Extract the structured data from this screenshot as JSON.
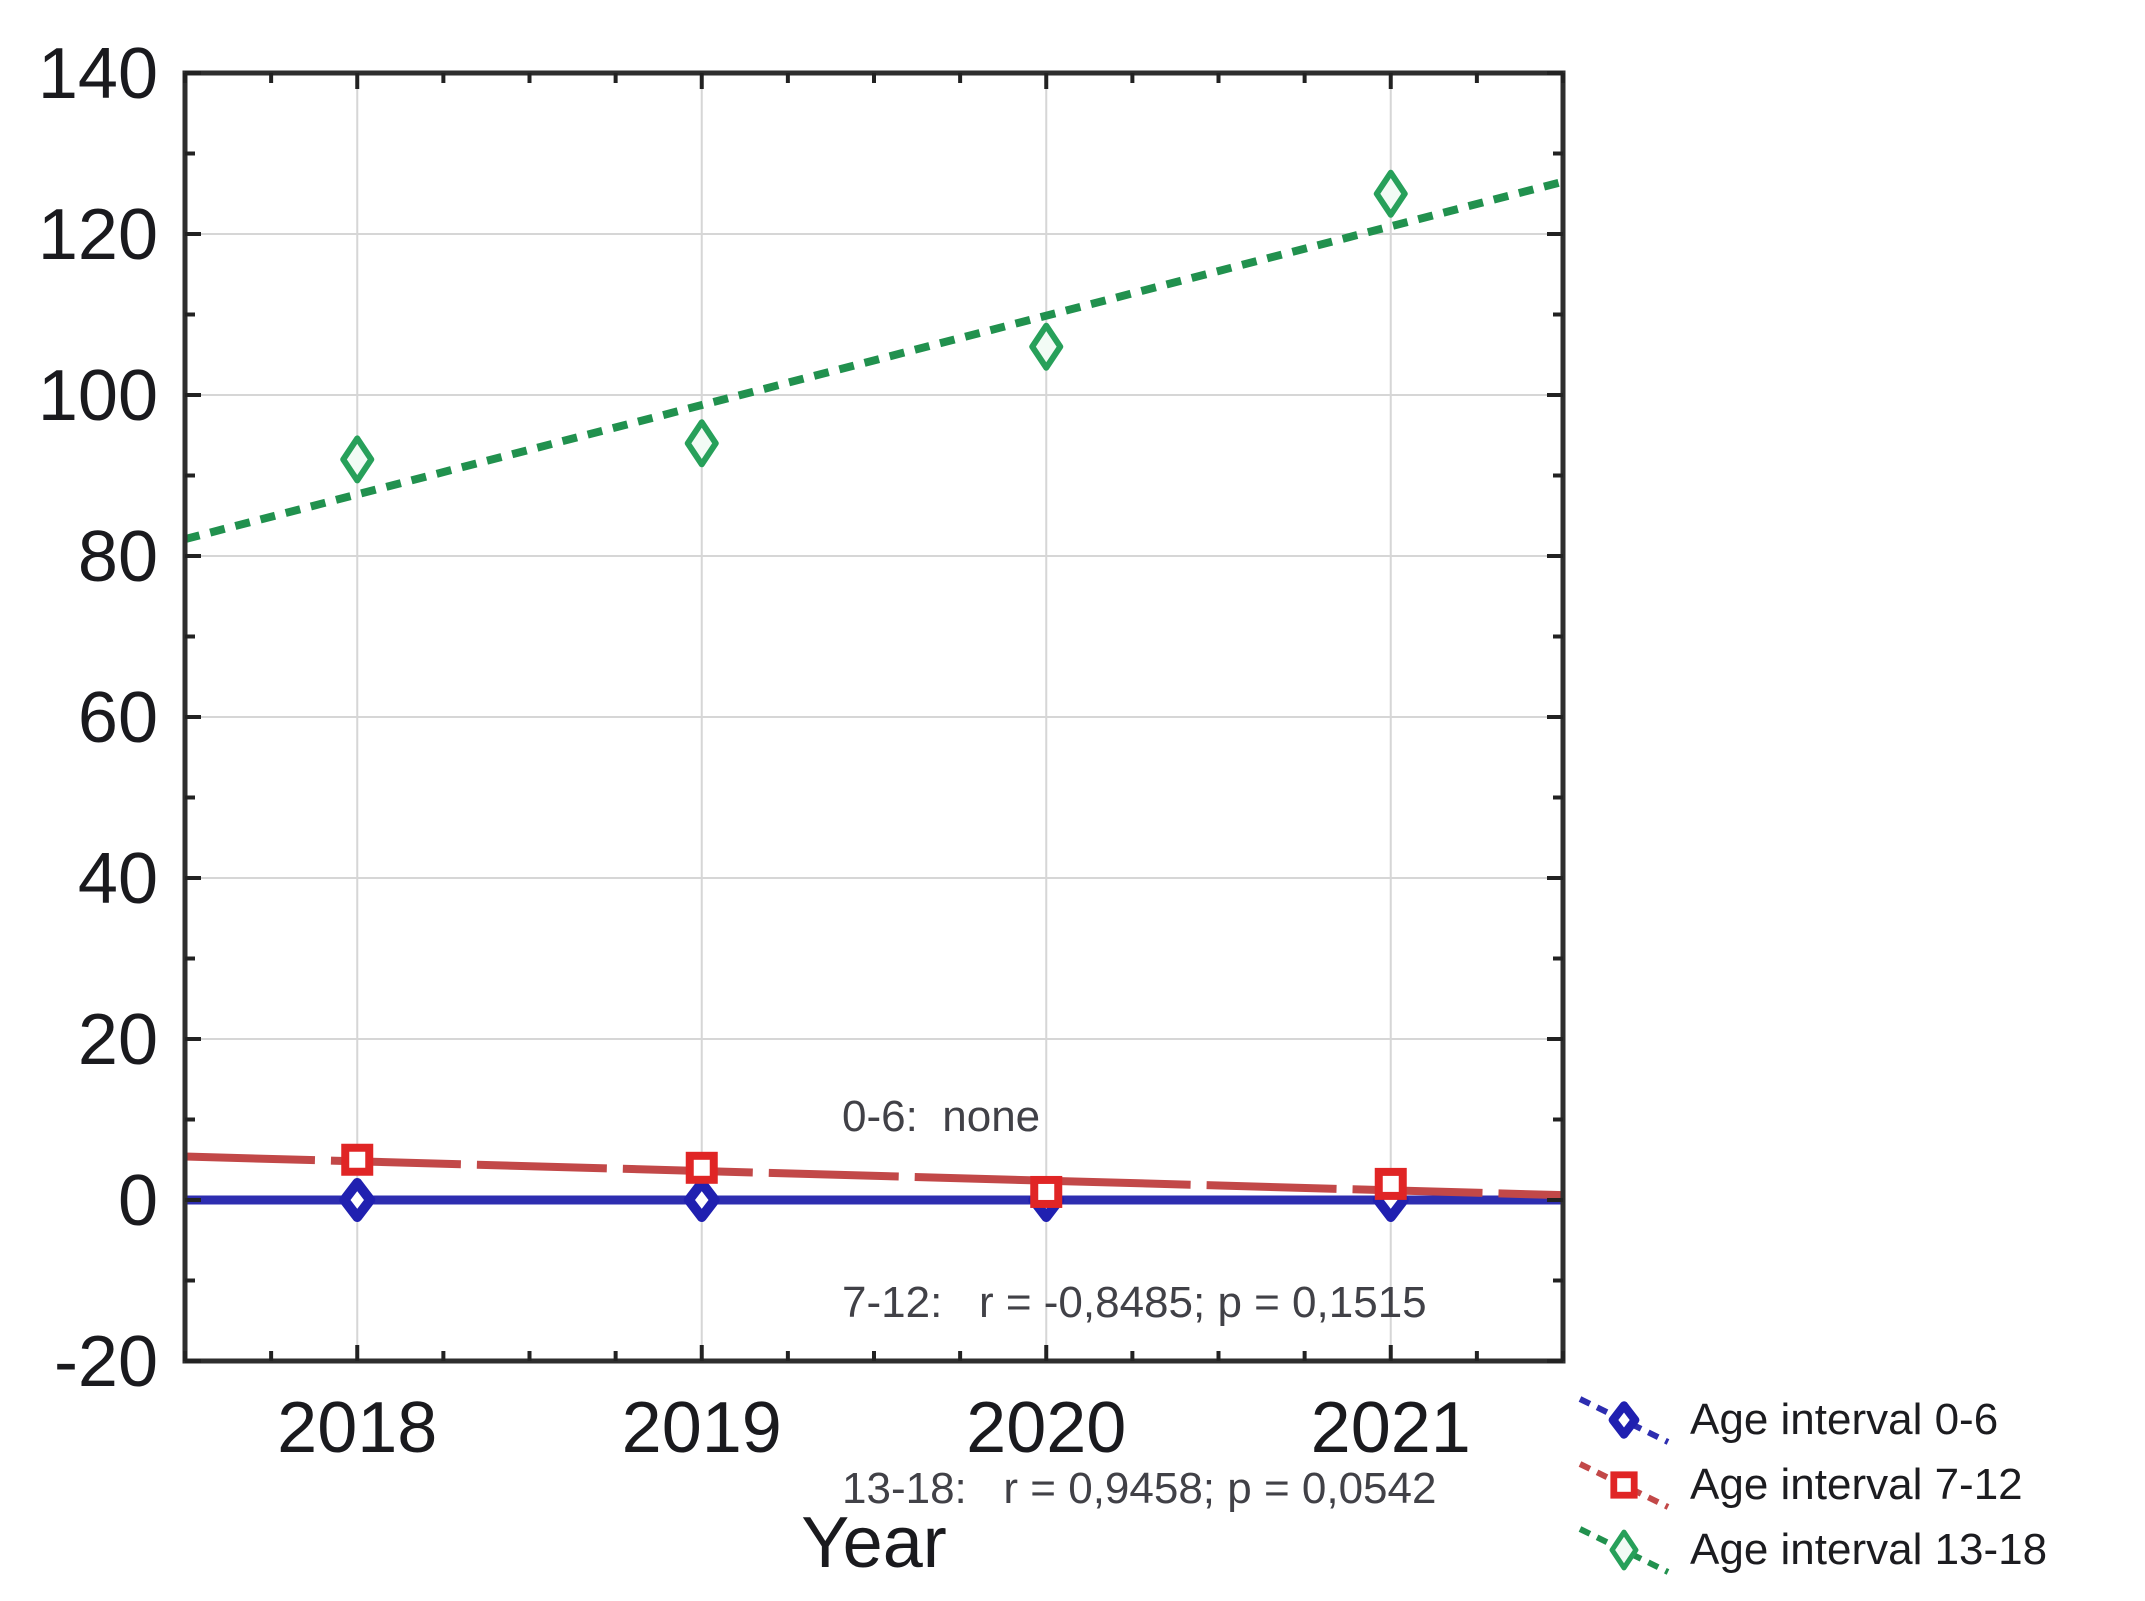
{
  "chart_data": {
    "type": "scatter",
    "title": "",
    "xlabel": "Year",
    "ylabel": "",
    "x": [
      2018,
      2019,
      2020,
      2021
    ],
    "xlim": [
      2017.5,
      2021.5
    ],
    "x_minor_step": 0.25,
    "ylim": [
      -20,
      140
    ],
    "y_major_step": 20,
    "y_minor_step": 10,
    "grid": true,
    "legend_position": "outside-bottom-right",
    "frame_color": "#2e2e2e",
    "grid_color": "#d6d6d6",
    "axis_text_color": "#1a1a1e",
    "series": [
      {
        "name": "Age interval 0-6",
        "age_interval": "0-6",
        "marker": "diamond",
        "marker_color": "#2020b0",
        "marker_rx": 13,
        "marker_ry": 17,
        "marker_stroke": 10,
        "marker_fill": "#ffffff",
        "line_color": "#2d2db0",
        "line_style": "solid",
        "line_width": 9,
        "values": [
          0,
          0,
          0,
          0
        ],
        "trendline": {
          "y_at_xlim_start": 0,
          "y_at_xlim_end": 0
        },
        "correlation": "none"
      },
      {
        "name": "Age interval 7-12",
        "age_interval": "7-12",
        "marker": "square",
        "marker_color": "#e02525",
        "marker_rx": 12,
        "marker_ry": 12,
        "marker_stroke": 8,
        "marker_fill": "#ffffff",
        "line_color": "#c24848",
        "line_style": "long-dash",
        "line_width": 8,
        "values": [
          5,
          4,
          1,
          2
        ],
        "trendline": {
          "y_at_xlim_start": 5.4,
          "y_at_xlim_end": 0.6
        },
        "correlation": "r = -0,8485; p = 0,1515"
      },
      {
        "name": "Age interval 13-18",
        "age_interval": "13-18",
        "marker": "diamond",
        "marker_color": "#27a05a",
        "marker_rx": 14,
        "marker_ry": 21,
        "marker_stroke": 6,
        "marker_fill": "#f2fbf5",
        "line_color": "#21914e",
        "line_style": "dash",
        "line_width": 8,
        "values": [
          92,
          94,
          106,
          125
        ],
        "trendline": {
          "y_at_xlim_start": 82.1,
          "y_at_xlim_end": 126.5
        },
        "correlation": "r = 0,9458; p = 0,0542"
      }
    ],
    "annotation": {
      "lines": [
        "0-6:  none",
        "7-12:   r = -0,8485; p = 0,1515",
        "13-18:   r = 0,9458; p = 0,0542"
      ]
    }
  },
  "axes": {
    "x_title": "Year",
    "x_tick_labels": [
      "2018",
      "2019",
      "2020",
      "2021"
    ],
    "y_tick_labels": [
      "-20",
      "0",
      "20",
      "40",
      "60",
      "80",
      "100",
      "120",
      "140"
    ]
  }
}
